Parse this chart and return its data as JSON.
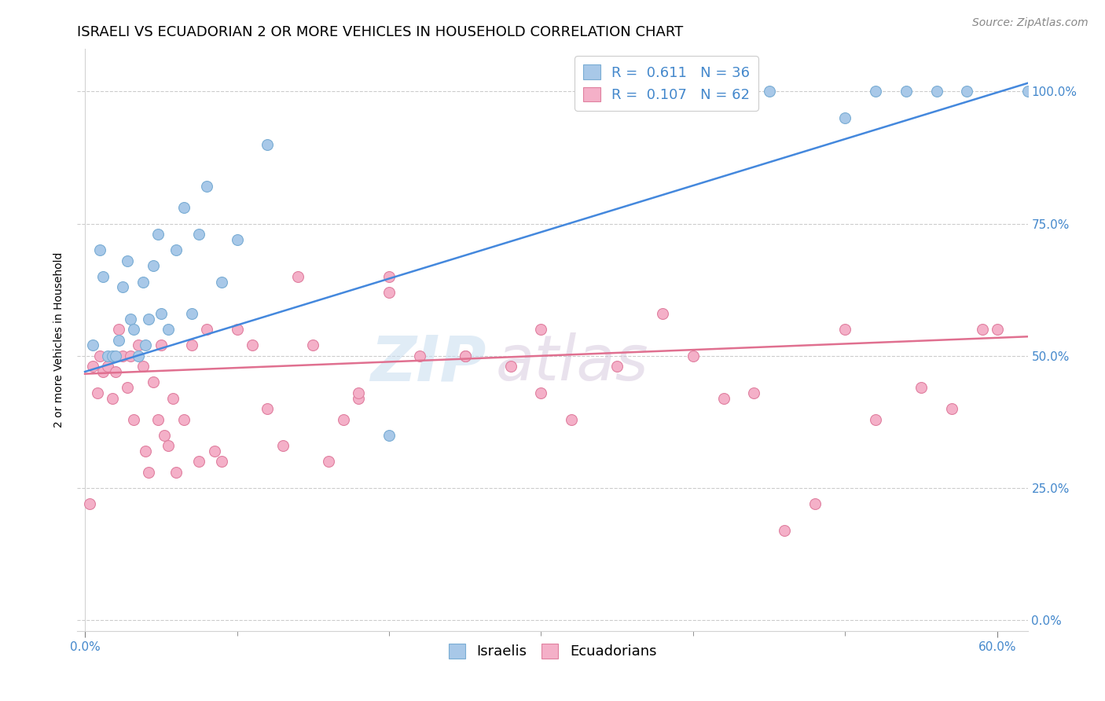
{
  "title": "ISRAELI VS ECUADORIAN 2 OR MORE VEHICLES IN HOUSEHOLD CORRELATION CHART",
  "source": "Source: ZipAtlas.com",
  "x_tick_positions": [
    0.0,
    0.6
  ],
  "x_tick_labels": [
    "0.0%",
    "60.0%"
  ],
  "ylabel_ticks_positions": [
    0.0,
    0.25,
    0.5,
    0.75,
    1.0
  ],
  "ylabel_ticks_labels": [
    "0.0%",
    "25.0%",
    "50.0%",
    "75.0%",
    "100.0%"
  ],
  "ylabel_label": "2 or more Vehicles in Household",
  "xlim": [
    -0.005,
    0.62
  ],
  "ylim": [
    -0.02,
    1.08
  ],
  "legend_R_N": [
    {
      "label": "R =  0.611   N = 36",
      "color": "#aec6e8"
    },
    {
      "label": "R =  0.107   N = 62",
      "color": "#f4b8c8"
    }
  ],
  "israeli_scatter_x": [
    0.005,
    0.01,
    0.012,
    0.015,
    0.018,
    0.02,
    0.022,
    0.025,
    0.028,
    0.03,
    0.032,
    0.035,
    0.038,
    0.04,
    0.042,
    0.045,
    0.048,
    0.05,
    0.055,
    0.06,
    0.065,
    0.07,
    0.075,
    0.08,
    0.09,
    0.1,
    0.12,
    0.2,
    0.45,
    0.5,
    0.52,
    0.54,
    0.56,
    0.58,
    0.62,
    0.63
  ],
  "israeli_scatter_y": [
    0.52,
    0.7,
    0.65,
    0.5,
    0.5,
    0.5,
    0.53,
    0.63,
    0.68,
    0.57,
    0.55,
    0.5,
    0.64,
    0.52,
    0.57,
    0.67,
    0.73,
    0.58,
    0.55,
    0.7,
    0.78,
    0.58,
    0.73,
    0.82,
    0.64,
    0.72,
    0.9,
    0.35,
    1.0,
    0.95,
    1.0,
    1.0,
    1.0,
    1.0,
    1.0,
    1.0
  ],
  "ecuadorian_scatter_x": [
    0.003,
    0.005,
    0.008,
    0.01,
    0.012,
    0.015,
    0.018,
    0.02,
    0.022,
    0.025,
    0.028,
    0.03,
    0.032,
    0.035,
    0.038,
    0.04,
    0.042,
    0.045,
    0.048,
    0.05,
    0.052,
    0.055,
    0.058,
    0.06,
    0.065,
    0.07,
    0.075,
    0.08,
    0.085,
    0.09,
    0.1,
    0.11,
    0.12,
    0.13,
    0.14,
    0.15,
    0.16,
    0.17,
    0.18,
    0.2,
    0.22,
    0.25,
    0.28,
    0.3,
    0.32,
    0.35,
    0.38,
    0.4,
    0.42,
    0.44,
    0.46,
    0.48,
    0.5,
    0.52,
    0.55,
    0.57,
    0.59,
    0.6,
    0.3,
    0.25,
    0.2,
    0.18
  ],
  "ecuadorian_scatter_y": [
    0.22,
    0.48,
    0.43,
    0.5,
    0.47,
    0.48,
    0.42,
    0.47,
    0.55,
    0.5,
    0.44,
    0.5,
    0.38,
    0.52,
    0.48,
    0.32,
    0.28,
    0.45,
    0.38,
    0.52,
    0.35,
    0.33,
    0.42,
    0.28,
    0.38,
    0.52,
    0.3,
    0.55,
    0.32,
    0.3,
    0.55,
    0.52,
    0.4,
    0.33,
    0.65,
    0.52,
    0.3,
    0.38,
    0.42,
    0.65,
    0.5,
    0.5,
    0.48,
    0.55,
    0.38,
    0.48,
    0.58,
    0.5,
    0.42,
    0.43,
    0.17,
    0.22,
    0.55,
    0.38,
    0.44,
    0.4,
    0.55,
    0.55,
    0.43,
    0.5,
    0.62,
    0.43
  ],
  "israeli_line_x": [
    0.0,
    0.625
  ],
  "israeli_line_y": [
    0.47,
    1.02
  ],
  "ecuadorian_line_x": [
    0.0,
    0.625
  ],
  "ecuadorian_line_y": [
    0.466,
    0.537
  ],
  "watermark_zip": "ZIP",
  "watermark_atlas": "atlas",
  "scatter_size": 100,
  "israeli_color": "#a8c8e8",
  "israeli_edge_color": "#7aadd4",
  "ecuadorian_color": "#f4b0c8",
  "ecuadorian_edge_color": "#e080a0",
  "israeli_line_color": "#4488dd",
  "ecuadorian_line_color": "#e07090",
  "grid_color": "#cccccc",
  "background_color": "#ffffff",
  "title_fontsize": 13,
  "axis_label_fontsize": 10,
  "tick_fontsize": 11,
  "legend_fontsize": 13,
  "source_fontsize": 10,
  "right_tick_color": "#4488cc"
}
